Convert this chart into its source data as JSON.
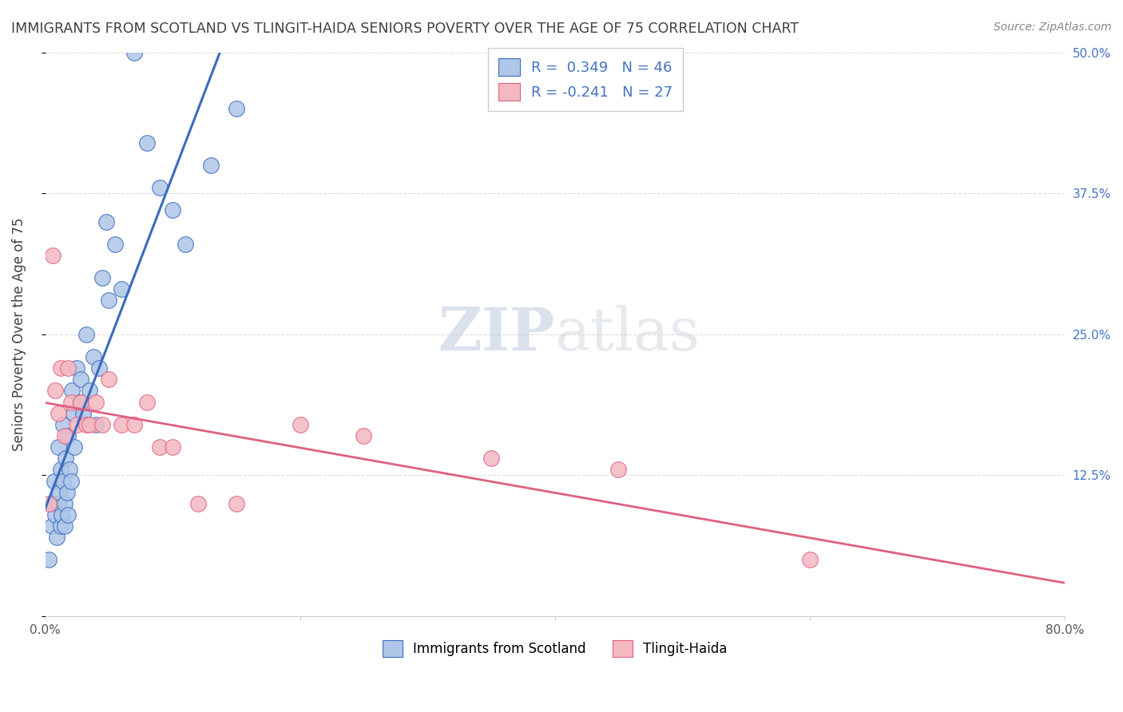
{
  "title": "IMMIGRANTS FROM SCOTLAND VS TLINGIT-HAIDA SENIORS POVERTY OVER THE AGE OF 75 CORRELATION CHART",
  "source": "Source: ZipAtlas.com",
  "ylabel": "Seniors Poverty Over the Age of 75",
  "legend_label1": "Immigrants from Scotland",
  "legend_label2": "Tlingit-Haida",
  "r1": 0.349,
  "n1": 46,
  "r2": -0.241,
  "n2": 27,
  "color1": "#aec6e8",
  "color2": "#f4b8c1",
  "line_color1": "#3a6bbf",
  "line_color2": "#e06080",
  "background_color": "#ffffff",
  "grid_color": "#d0d0d0",
  "title_color": "#404040",
  "axis_label_color": "#404040",
  "tick_color_right": "#4472c4",
  "watermark_zip": "ZIP",
  "watermark_atlas": "atlas",
  "xlim": [
    0.0,
    0.8
  ],
  "ylim": [
    0.0,
    0.5
  ],
  "xticks": [
    0.0,
    0.2,
    0.4,
    0.6,
    0.8
  ],
  "xtick_labels": [
    "0.0%",
    "",
    "",
    "",
    "80.0%"
  ],
  "yticks_right": [
    0.0,
    0.125,
    0.25,
    0.375,
    0.5
  ],
  "ytick_labels_right": [
    "",
    "12.5%",
    "25.0%",
    "37.5%",
    "50.0%"
  ],
  "scatter1_x": [
    0.003,
    0.005,
    0.006,
    0.007,
    0.008,
    0.009,
    0.01,
    0.01,
    0.011,
    0.012,
    0.012,
    0.013,
    0.014,
    0.014,
    0.015,
    0.015,
    0.016,
    0.017,
    0.018,
    0.018,
    0.019,
    0.02,
    0.021,
    0.022,
    0.023,
    0.025,
    0.027,
    0.028,
    0.03,
    0.032,
    0.035,
    0.038,
    0.04,
    0.042,
    0.045,
    0.048,
    0.05,
    0.055,
    0.06,
    0.07,
    0.08,
    0.09,
    0.1,
    0.11,
    0.13,
    0.15
  ],
  "scatter1_y": [
    0.05,
    0.08,
    0.1,
    0.12,
    0.09,
    0.07,
    0.1,
    0.15,
    0.11,
    0.08,
    0.13,
    0.09,
    0.12,
    0.17,
    0.08,
    0.1,
    0.14,
    0.11,
    0.09,
    0.16,
    0.13,
    0.12,
    0.2,
    0.18,
    0.15,
    0.22,
    0.19,
    0.21,
    0.18,
    0.25,
    0.2,
    0.23,
    0.17,
    0.22,
    0.3,
    0.35,
    0.28,
    0.33,
    0.29,
    0.5,
    0.42,
    0.38,
    0.36,
    0.33,
    0.4,
    0.45
  ],
  "scatter2_x": [
    0.003,
    0.006,
    0.008,
    0.01,
    0.012,
    0.015,
    0.018,
    0.02,
    0.025,
    0.028,
    0.032,
    0.035,
    0.04,
    0.045,
    0.05,
    0.06,
    0.07,
    0.08,
    0.09,
    0.1,
    0.12,
    0.15,
    0.2,
    0.25,
    0.35,
    0.45,
    0.6
  ],
  "scatter2_y": [
    0.1,
    0.32,
    0.2,
    0.18,
    0.22,
    0.16,
    0.22,
    0.19,
    0.17,
    0.19,
    0.17,
    0.17,
    0.19,
    0.17,
    0.21,
    0.17,
    0.17,
    0.19,
    0.15,
    0.15,
    0.1,
    0.1,
    0.17,
    0.16,
    0.14,
    0.13,
    0.05
  ]
}
